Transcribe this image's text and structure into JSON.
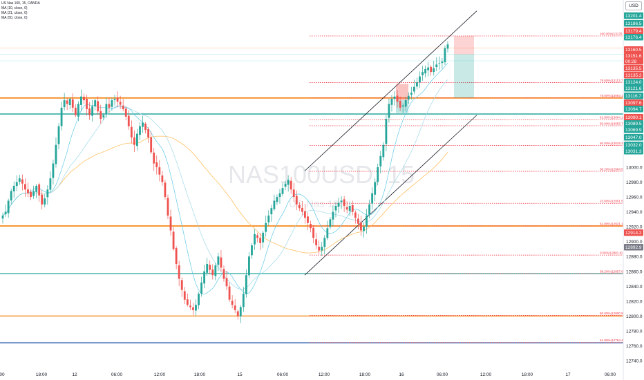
{
  "legend": {
    "symbol": "US Nas 100, 15, OANDA",
    "ma1": "MA (10, close, 0)",
    "ma2": "MA (21, close, 0)",
    "ma3": "MA (50, close, 0)"
  },
  "currency": "USD",
  "watermark": {
    "main": "NAS100USD, 15",
    "sub": "US Nas 100"
  },
  "colors": {
    "up": "#26a69a",
    "down": "#ef5350",
    "teal_line": "#26a69a",
    "orange_line": "#f57c00",
    "navy_line": "#0d47a1",
    "fib_red": "#f23645",
    "ma_fast": "#5ec8e6",
    "ma_slow": "#ffb74d"
  },
  "chart_data": {
    "type": "candlestick",
    "title": "US Nas 100, 15, OANDA",
    "ylim": [
      12730,
      13210
    ],
    "y_ticks": [
      12740,
      12760,
      12780,
      12800,
      12820,
      12840,
      12860,
      12880,
      12900,
      12920,
      12940,
      12960,
      12980,
      13000
    ],
    "x_tick_labels": [
      "00",
      "18:00",
      "12",
      "06:00",
      "12:00",
      "18:00",
      "15",
      "06:00",
      "12:00",
      "18:00",
      "16",
      "06:00",
      "12:00",
      "18:00",
      "17",
      "06:00"
    ],
    "price_tags": [
      {
        "label": "13201.4",
        "color": "#26a69a"
      },
      {
        "label": "13186.5",
        "color": "#26a69a"
      },
      {
        "label": "13179.4",
        "color": "#ef5350"
      },
      {
        "label": "13176.4",
        "color": "#26a69a"
      },
      {
        "label": "13160.5",
        "color": "#ef5350"
      },
      {
        "label": "13151.6",
        "color": "#ef5350"
      },
      {
        "label": "00:28",
        "color": "#ef5350"
      },
      {
        "label": "13135.5",
        "color": "#ef5350"
      },
      {
        "label": "13135.2",
        "color": "#ef5350"
      },
      {
        "label": "13124.0",
        "color": "#26a69a"
      },
      {
        "label": "13121.6",
        "color": "#26a69a"
      },
      {
        "label": "13116.7",
        "color": "#26a69a"
      },
      {
        "label": "13097.6",
        "color": "#ef5350"
      },
      {
        "label": "13094.7",
        "color": "#26a69a"
      },
      {
        "label": "13090.1",
        "color": "#ef5350"
      },
      {
        "label": "13089.5",
        "color": "#26a69a"
      },
      {
        "label": "13069.9",
        "color": "#26a69a"
      },
      {
        "label": "13047.0",
        "color": "#26a69a"
      },
      {
        "label": "13032.0",
        "color": "#26a69a"
      },
      {
        "label": "13031.3",
        "color": "#26a69a"
      },
      {
        "label": "12914.2",
        "color": "#ef5350"
      },
      {
        "label": "12892.9",
        "color": "#787b86"
      }
    ],
    "horizontal_lines": [
      {
        "price": 13093,
        "color": "#f57c00",
        "width": 1.6
      },
      {
        "price": 13071.5,
        "color": "#26a69a",
        "width": 1.6
      },
      {
        "price": 12921,
        "color": "#f57c00",
        "width": 1.6
      },
      {
        "price": 12857,
        "color": "#26a69a",
        "width": 1.2
      },
      {
        "price": 12800,
        "color": "#f57c00",
        "width": 1.2
      },
      {
        "price": 12764,
        "color": "#0d47a1",
        "width": 1.2
      },
      {
        "price": 13160,
        "color": "#ffcc99",
        "width": 0.6
      },
      {
        "price": 13152,
        "color": "#b2ebf2",
        "width": 0.6
      },
      {
        "price": 13143,
        "color": "#b2ebf2",
        "width": 0.6
      }
    ],
    "fib_levels": [
      {
        "label": "100.00%(13176.4)",
        "price": 13176.4
      },
      {
        "label": "78.60%(13113.7)",
        "price": 13113.7
      },
      {
        "label": "78.60%(13093.1)",
        "price": 13093.1
      },
      {
        "label": "61.80%(13064.1)",
        "price": 13064.1
      },
      {
        "label": "50.00%(13055.7)",
        "price": 13055.7
      },
      {
        "label": "50.00%(13029.3)",
        "price": 13029.3
      },
      {
        "label": "38.20%(12994.5)",
        "price": 12994.5
      },
      {
        "label": "23.60%(12951.5)",
        "price": 12951.5
      },
      {
        "label": "61.80%(12921.1)",
        "price": 12921.1
      },
      {
        "label": "0.00%(12881.9)",
        "price": 12881.9
      },
      {
        "label": "38.20%(12857.0)",
        "price": 12857.0
      },
      {
        "label": "50.00%(12800.9)",
        "price": 12800.9
      },
      {
        "label": "61.80%(12764.4)",
        "price": 12764.4
      }
    ],
    "channel": {
      "upper": [
        [
          0,
          12995
        ],
        [
          1,
          13210
        ]
      ],
      "lower": [
        [
          0,
          12855
        ],
        [
          1,
          13070
        ]
      ]
    },
    "position_box": {
      "entry": 13151.6,
      "stop": 13176.4,
      "target": 13093.1
    },
    "supply_zone": {
      "top": 13112,
      "bottom": 13090
    },
    "demand_zone": {
      "top": 13090,
      "bottom": 13073
    },
    "series_close": [
      12935,
      12940,
      12955,
      12968,
      12975,
      12980,
      12985,
      12978,
      12970,
      12965,
      12960,
      12968,
      12975,
      12962,
      12950,
      12958,
      12970,
      12985,
      13005,
      13030,
      13055,
      13080,
      13090,
      13085,
      13092,
      13080,
      13070,
      13085,
      13095,
      13090,
      13078,
      13070,
      13082,
      13090,
      13075,
      13065,
      13070,
      13085,
      13080,
      13090,
      13092,
      13088,
      13084,
      13078,
      13068,
      13055,
      13040,
      13030,
      13045,
      13055,
      13060,
      13050,
      13040,
      13020,
      13005,
      13000,
      12990,
      12980,
      12960,
      12935,
      12915,
      12890,
      12870,
      12850,
      12835,
      12822,
      12815,
      12812,
      12808,
      12815,
      12830,
      12845,
      12860,
      12870,
      12862,
      12855,
      12868,
      12880,
      12865,
      12850,
      12840,
      12822,
      12815,
      12808,
      12800,
      12812,
      12830,
      12855,
      12880,
      12895,
      12910,
      12905,
      12898,
      12912,
      12925,
      12935,
      12945,
      12955,
      12960,
      12965,
      12972,
      12978,
      12983,
      12970,
      12960,
      12950,
      12945,
      12940,
      12932,
      12925,
      12918,
      12905,
      12895,
      12888,
      12893,
      12905,
      12918,
      12930,
      12940,
      12948,
      12952,
      12955,
      12948,
      12943,
      12948,
      12940,
      12932,
      12924,
      12915,
      12920,
      12935,
      12950,
      12965,
      12980,
      13000,
      13015,
      13030,
      13065,
      13085,
      13092,
      13095,
      13088,
      13080,
      13083,
      13090,
      13096,
      13100,
      13108,
      13114,
      13122,
      13128,
      13132,
      13134,
      13128,
      13133,
      13138,
      13140,
      13142,
      13160,
      13165
    ]
  }
}
